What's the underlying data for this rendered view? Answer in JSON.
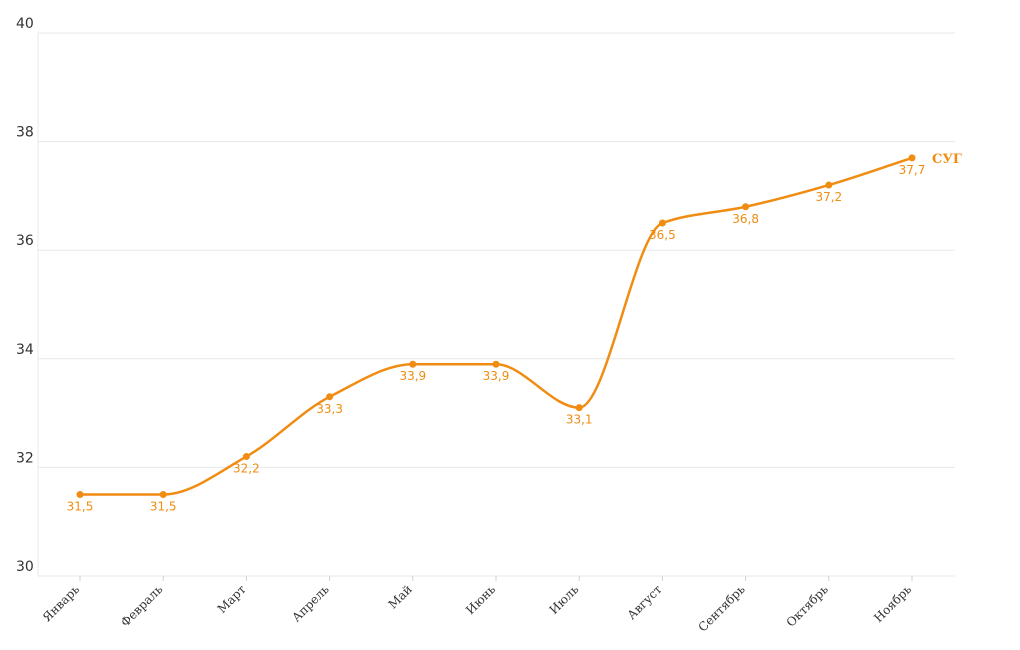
{
  "chart_data": {
    "type": "line",
    "title": "",
    "xlabel": "",
    "ylabel": "",
    "categories": [
      "Январь",
      "Февраль",
      "Март",
      "Апрель",
      "Май",
      "Июнь",
      "Июль",
      "Август",
      "Сентябрь",
      "Октябрь",
      "Ноябрь"
    ],
    "series": [
      {
        "name": "СУГ",
        "color": "#f08c12",
        "values": [
          31.5,
          31.5,
          32.2,
          33.3,
          33.9,
          33.9,
          33.1,
          36.5,
          36.8,
          37.2,
          37.7
        ],
        "labels": [
          "31,5",
          "31,5",
          "32,2",
          "33,3",
          "33,9",
          "33,9",
          "33,1",
          "36,5",
          "36,8",
          "37,2",
          "37,7"
        ]
      }
    ],
    "ylim": [
      30,
      40
    ],
    "yticks": [
      30,
      32,
      34,
      36,
      38,
      40
    ],
    "ytick_labels": [
      "30",
      "32",
      "34",
      "36",
      "38",
      "40"
    ],
    "grid": true,
    "smooth": true,
    "markers": true,
    "legend": "end-of-line label"
  }
}
